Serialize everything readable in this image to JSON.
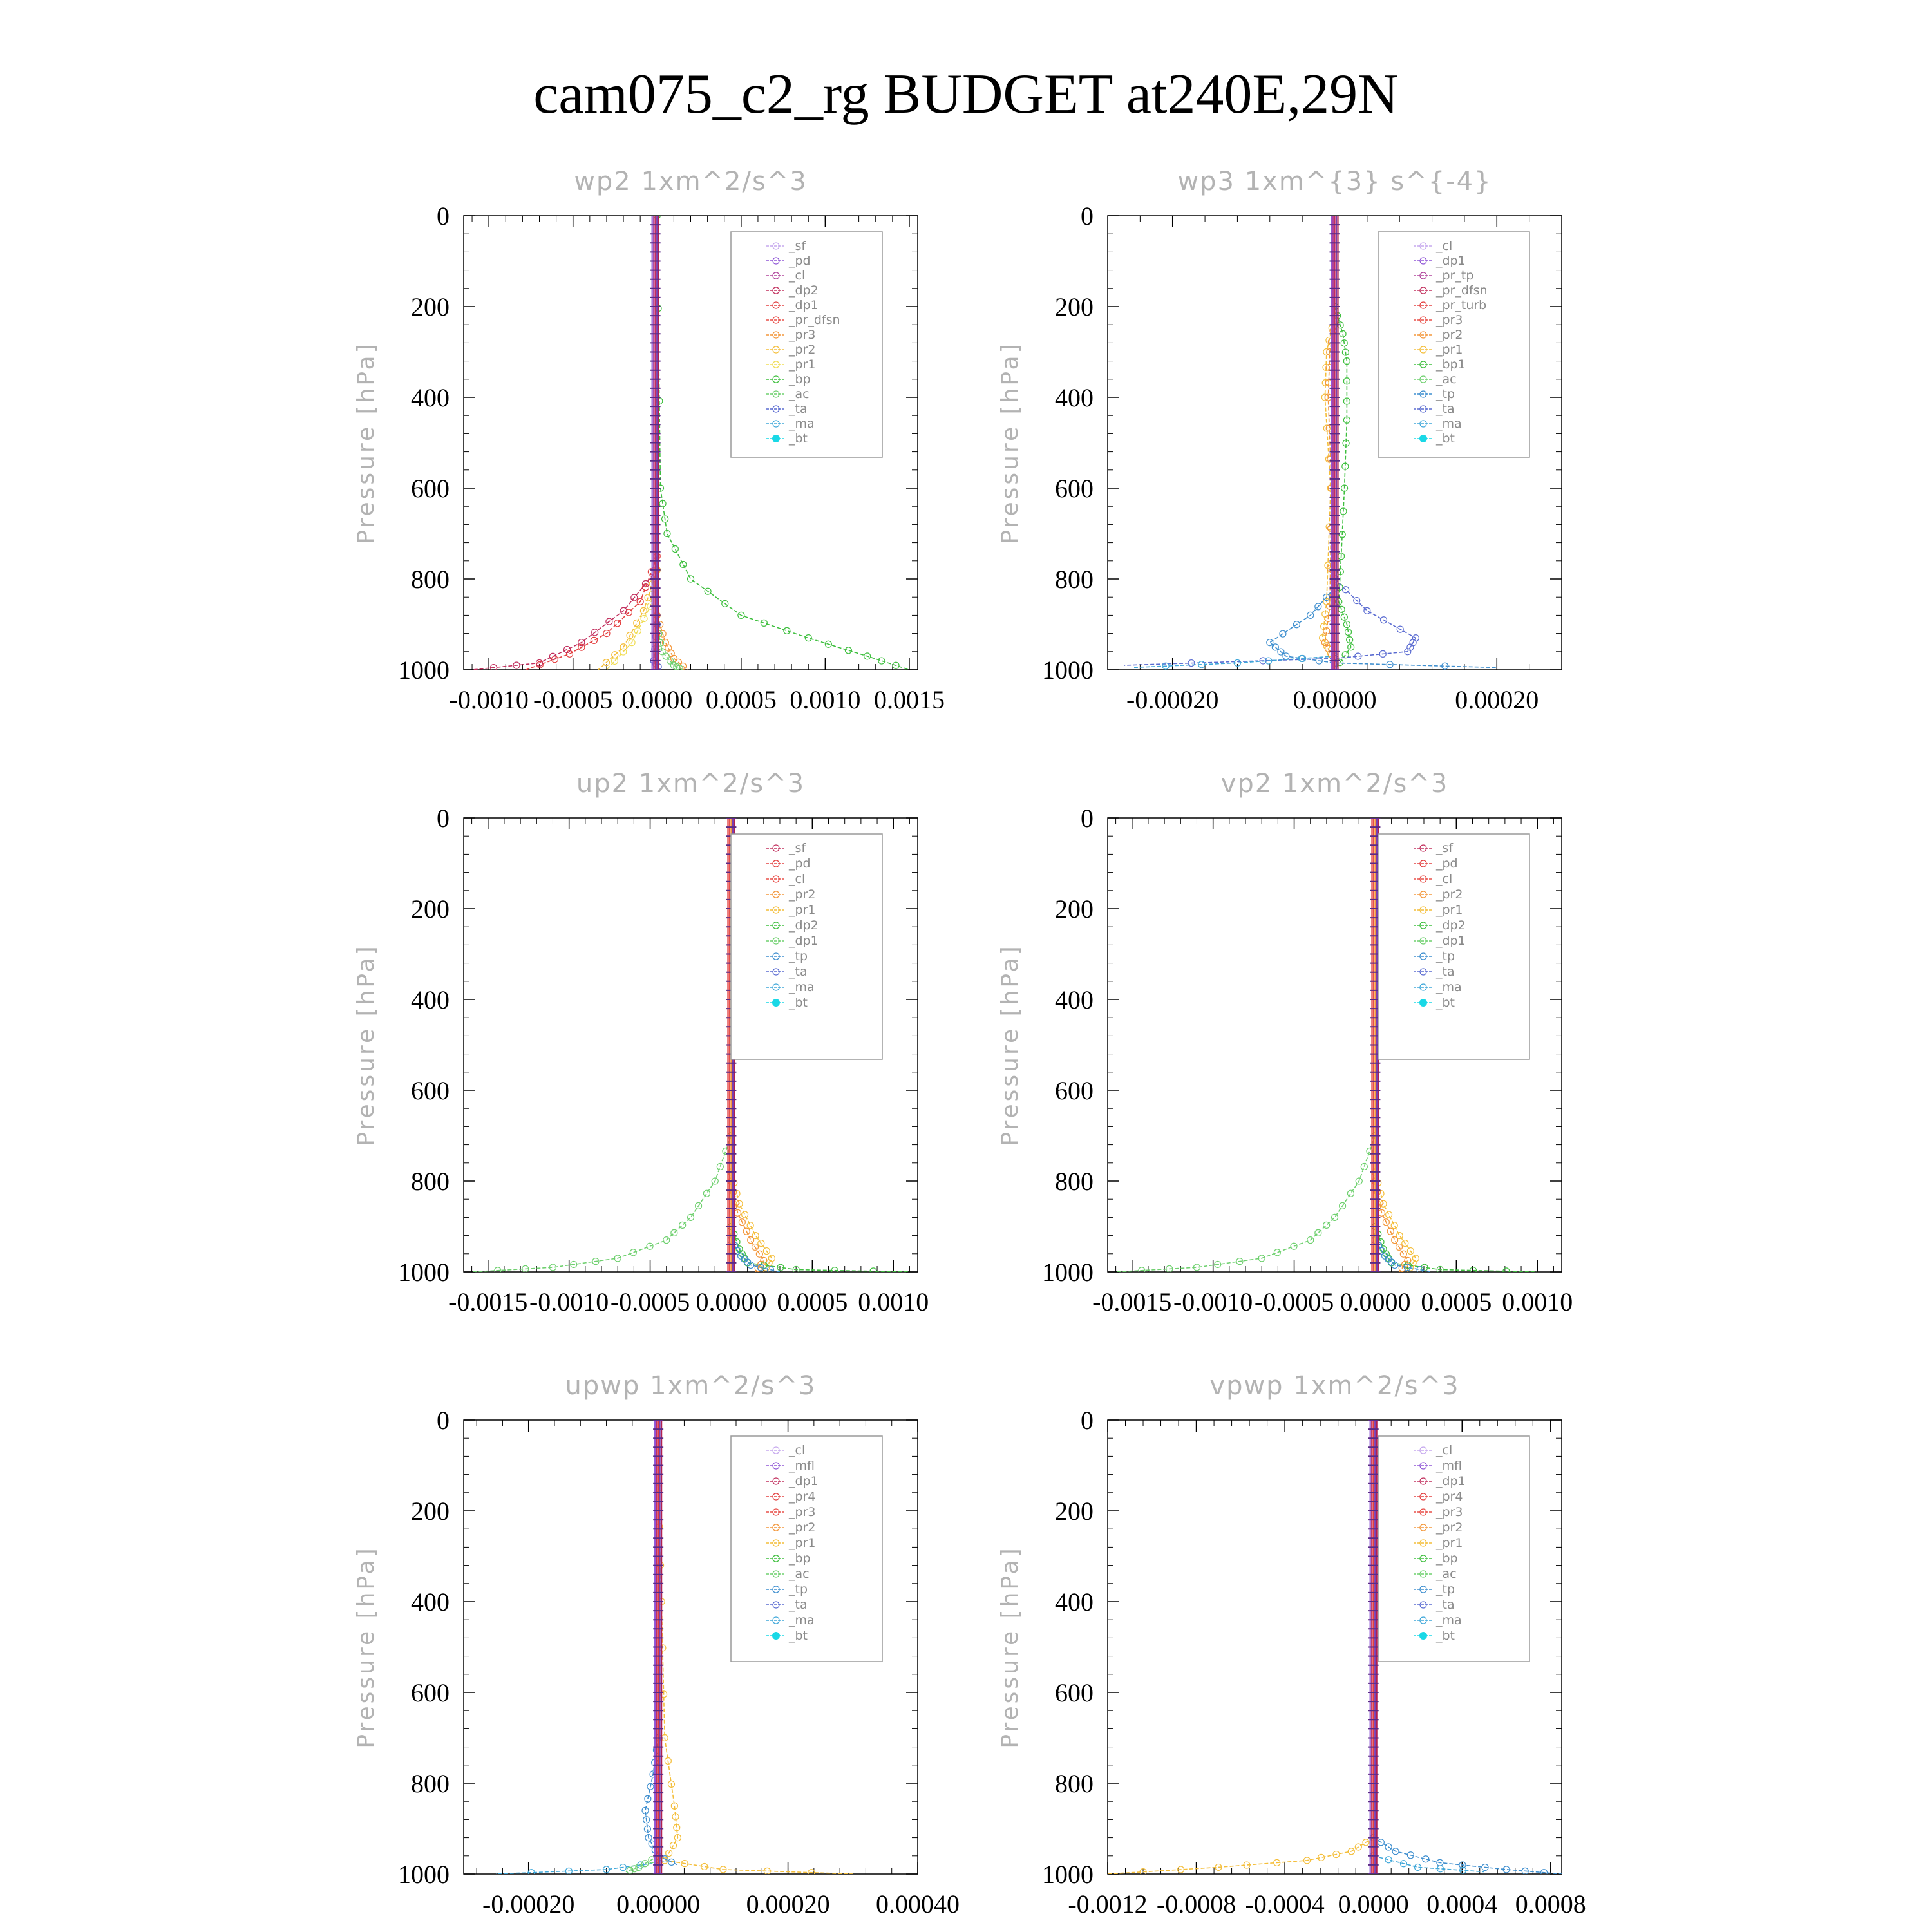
{
  "figure_title": "cam075_c2_rg  BUDGET at240E,29N",
  "chart_data": [
    {
      "type": "line",
      "title": "wp2   1xm^2/s^3",
      "ylabel": "Pressure [hPa]",
      "ylim": [
        1000,
        0
      ],
      "yticks": [
        "0",
        "200",
        "400",
        "600",
        "800",
        "1000"
      ],
      "xlim": [
        -0.00115,
        0.00155
      ],
      "xticks": [
        -0.001,
        -0.0005,
        0.0,
        0.0005,
        0.001,
        0.0015
      ],
      "xtick_labels": [
        "-0.0010",
        "-0.0005",
        "0.0000",
        "0.0005",
        "0.0010",
        "0.0015"
      ],
      "zero_x": -1e-05,
      "legend_position": "top-right",
      "legend": [
        "_sf",
        "_pd",
        "_cl",
        "_dp2",
        "_dp1",
        "_pr_dfsn",
        "_pr3",
        "_pr2",
        "_pr1",
        "_bp",
        "_ac",
        "_ta",
        "_ma",
        "_bt"
      ],
      "series_colors": [
        "#c6a8ee",
        "#8f56d6",
        "#b0449c",
        "#c2305e",
        "#e34040",
        "#e8504a",
        "#f3973b",
        "#f4be3a",
        "#f0dd55",
        "#3fbf3f",
        "#6fd06f",
        "#5a6bd1",
        "#3fa7d9",
        "#19d8e6"
      ],
      "series": [
        {
          "name": "_bp",
          "x": [
            0.0,
            2e-05,
            6e-05,
            0.0002,
            0.0005,
            0.0009,
            0.00125,
            0.0015
          ],
          "y": [
            0,
            600,
            700,
            800,
            880,
            930,
            970,
            1000
          ]
        },
        {
          "name": "_dp1",
          "x": [
            0.0,
            -0.0001,
            -0.0003,
            -0.00052,
            -0.00078
          ],
          "y": [
            750,
            850,
            920,
            965,
            1000
          ]
        },
        {
          "name": "_dp2",
          "x": [
            0.0,
            -0.0002,
            -0.00045,
            -0.0007,
            -0.0011
          ],
          "y": [
            780,
            870,
            940,
            985,
            1000
          ]
        },
        {
          "name": "_pr1",
          "x": [
            0.0,
            -4e-05,
            -0.00015,
            -0.0003
          ],
          "y": [
            780,
            860,
            940,
            1000
          ]
        },
        {
          "name": "_pr2",
          "x": [
            0.0,
            -8e-05,
            -0.0002,
            -0.00035
          ],
          "y": [
            780,
            870,
            950,
            1000
          ]
        },
        {
          "name": "_pr3",
          "x": [
            0.0,
            5e-05,
            0.0001,
            0.00018
          ],
          "y": [
            880,
            940,
            975,
            1000
          ]
        },
        {
          "name": "_ac",
          "x": [
            0.0,
            3e-05,
            0.0001,
            0.00015
          ],
          "y": [
            900,
            960,
            990,
            1000
          ]
        },
        {
          "name": "_ta",
          "x": [
            0.0,
            -2e-05,
            2e-05
          ],
          "y": [
            900,
            980,
            1000
          ]
        }
      ]
    },
    {
      "type": "line",
      "title": "wp3   1xm^{3} s^{-4}",
      "ylabel": "Pressure [hPa]",
      "ylim": [
        1000,
        0
      ],
      "yticks": [
        "0",
        "200",
        "400",
        "600",
        "800",
        "1000"
      ],
      "xlim": [
        -0.00028,
        0.00028
      ],
      "xticks": [
        -0.0002,
        0.0,
        0.0002
      ],
      "xtick_labels": [
        "-0.00020",
        "0.00000",
        "0.00020"
      ],
      "zero_x": 0.0,
      "legend_position": "top-right",
      "legend": [
        "_cl",
        "_dp1",
        "_pr_tp",
        "_pr_dfsn",
        "_pr_turb",
        "_pr3",
        "_pr2",
        "_pr1",
        "_bp1",
        "_ac",
        "_tp",
        "_ta",
        "_ma",
        "_bt"
      ],
      "series_colors": [
        "#c6a8ee",
        "#8f56d6",
        "#b0449c",
        "#c2305e",
        "#e34040",
        "#e8504a",
        "#f3973b",
        "#f4be3a",
        "#3fbf3f",
        "#6fd06f",
        "#3f8fcf",
        "#5a6bd1",
        "#3fa7d9",
        "#19d8e6"
      ],
      "series": [
        {
          "name": "_bp1",
          "x": [
            0.0,
            1e-05,
            1.5e-05,
            1.5e-05,
            1.2e-05,
            8e-06,
            5e-06,
            1.5e-05,
            2e-05,
            0.0
          ],
          "y": [
            200,
            260,
            320,
            450,
            600,
            750,
            850,
            900,
            950,
            1000
          ]
        },
        {
          "name": "_pr1",
          "x": [
            0.0,
            -1e-05,
            -1.2e-05,
            -5e-06,
            -1e-05,
            -1.5e-05,
            0.0
          ],
          "y": [
            220,
            300,
            400,
            600,
            850,
            930,
            980
          ]
        },
        {
          "name": "_pr2",
          "x": [
            0.0,
            -6e-06,
            -8e-06,
            -4e-06,
            -6e-06,
            -1.2e-05,
            0.0
          ],
          "y": [
            230,
            300,
            400,
            600,
            860,
            940,
            980
          ]
        },
        {
          "name": "_tp",
          "x": [
            0.0,
            -3e-05,
            -8e-05,
            -6e-05,
            0.0,
            0.0002
          ],
          "y": [
            820,
            880,
            940,
            970,
            985,
            995
          ]
        },
        {
          "name": "_ta",
          "x": [
            0.0,
            4e-05,
            0.0001,
            9e-05,
            0.0,
            -0.00026
          ],
          "y": [
            800,
            870,
            930,
            960,
            975,
            990
          ]
        },
        {
          "name": "_ma",
          "x": [
            0.0,
            -0.00012,
            -0.00025
          ],
          "y": [
            970,
            985,
            995
          ]
        }
      ]
    },
    {
      "type": "line",
      "title": "up2   1xm^2/s^3",
      "ylabel": "Pressure [hPa]",
      "ylim": [
        1000,
        0
      ],
      "yticks": [
        "0",
        "200",
        "400",
        "600",
        "800",
        "1000"
      ],
      "xlim": [
        -0.00165,
        0.00115
      ],
      "xticks": [
        -0.0015,
        -0.001,
        -0.0005,
        0.0,
        0.0005,
        0.001
      ],
      "xtick_labels": [
        "-0.0015",
        "-0.0010",
        "-0.0005",
        "0.0000",
        "0.0005",
        "0.0010"
      ],
      "zero_x": 0.0,
      "legend_position": "top-right",
      "legend": [
        "_sf",
        "_pd",
        "_cl",
        "_pr2",
        "_pr1",
        "_dp2",
        "_dp1",
        "_tp",
        "_ta",
        "_ma",
        "_bt"
      ],
      "series_colors": [
        "#c2305e",
        "#e34040",
        "#e8504a",
        "#f3973b",
        "#f4be3a",
        "#3fbf3f",
        "#6fd06f",
        "#3f8fcf",
        "#5a6bd1",
        "#3fa7d9",
        "#19d8e6"
      ],
      "series": [
        {
          "name": "_dp1",
          "x": [
            0.0,
            -0.0001,
            -0.00025,
            -0.0004,
            -0.0007,
            -0.0011,
            -0.0016
          ],
          "y": [
            700,
            800,
            880,
            930,
            970,
            990,
            1000
          ]
        },
        {
          "name": "_pr1",
          "x": [
            0.0,
            5e-05,
            0.00015,
            0.00025,
            0.0002
          ],
          "y": [
            780,
            850,
            920,
            970,
            1000
          ]
        },
        {
          "name": "_pr2",
          "x": [
            0.0,
            4e-05,
            0.00012,
            0.0002,
            0.00015
          ],
          "y": [
            800,
            870,
            930,
            975,
            1000
          ]
        },
        {
          "name": "_dp2",
          "x": [
            0.0,
            5e-05,
            0.0001,
            0.0004,
            0.0011
          ],
          "y": [
            900,
            950,
            980,
            995,
            1000
          ]
        },
        {
          "name": "_tp",
          "x": [
            0.0,
            6e-05,
            0.00012,
            0.0003
          ],
          "y": [
            930,
            965,
            985,
            1000
          ]
        }
      ]
    },
    {
      "type": "line",
      "title": "vp2   1xm^2/s^3",
      "ylabel": "Pressure [hPa]",
      "ylim": [
        1000,
        0
      ],
      "yticks": [
        "0",
        "200",
        "400",
        "600",
        "800",
        "1000"
      ],
      "xlim": [
        -0.00165,
        0.00115
      ],
      "xticks": [
        -0.0015,
        -0.001,
        -0.0005,
        0.0,
        0.0005,
        0.001
      ],
      "xtick_labels": [
        "-0.0015",
        "-0.0010",
        "-0.0005",
        "0.0000",
        "0.0005",
        "0.0010"
      ],
      "zero_x": 0.0,
      "legend_position": "top-right",
      "legend": [
        "_sf",
        "_pd",
        "_cl",
        "_pr2",
        "_pr1",
        "_dp2",
        "_dp1",
        "_tp",
        "_ta",
        "_ma",
        "_bt"
      ],
      "series_colors": [
        "#c2305e",
        "#e34040",
        "#e8504a",
        "#f3973b",
        "#f4be3a",
        "#3fbf3f",
        "#6fd06f",
        "#3f8fcf",
        "#5a6bd1",
        "#3fa7d9",
        "#19d8e6"
      ],
      "series": [
        {
          "name": "_dp1",
          "x": [
            0.0,
            -0.0001,
            -0.00025,
            -0.0004,
            -0.0007,
            -0.0011,
            -0.0016
          ],
          "y": [
            700,
            800,
            880,
            930,
            970,
            990,
            1000
          ]
        },
        {
          "name": "_pr1",
          "x": [
            0.0,
            5e-05,
            0.00015,
            0.00025,
            0.0002
          ],
          "y": [
            780,
            850,
            920,
            970,
            1000
          ]
        },
        {
          "name": "_pr2",
          "x": [
            0.0,
            4e-05,
            0.00012,
            0.0002,
            0.00015
          ],
          "y": [
            800,
            870,
            930,
            975,
            1000
          ]
        },
        {
          "name": "_dp2",
          "x": [
            0.0,
            5e-05,
            0.0001,
            0.0004,
            0.001
          ],
          "y": [
            900,
            950,
            980,
            995,
            1000
          ]
        },
        {
          "name": "_tp",
          "x": [
            0.0,
            6e-05,
            0.00012,
            0.00035
          ],
          "y": [
            930,
            965,
            985,
            1000
          ]
        }
      ]
    },
    {
      "type": "line",
      "title": "upwp   1xm^2/s^3",
      "ylabel": "Pressure [hPa]",
      "ylim": [
        1000,
        0
      ],
      "yticks": [
        "0",
        "200",
        "400",
        "600",
        "800",
        "1000"
      ],
      "xlim": [
        -0.0003,
        0.0004
      ],
      "xticks": [
        -0.0002,
        0.0,
        0.0002,
        0.0004
      ],
      "xtick_labels": [
        "-0.00020",
        "0.00000",
        "0.00020",
        "0.00040"
      ],
      "zero_x": 0.0,
      "legend_position": "top-right",
      "legend": [
        "_cl",
        "_mfl",
        "_dp1",
        "_pr4",
        "_pr3",
        "_pr2",
        "_pr1",
        "_bp",
        "_ac",
        "_tp",
        "_ta",
        "_ma",
        "_bt"
      ],
      "series_colors": [
        "#c6a8ee",
        "#8f56d6",
        "#c2305e",
        "#e34040",
        "#e8504a",
        "#f3973b",
        "#f4be3a",
        "#3fbf3f",
        "#6fd06f",
        "#3f8fcf",
        "#5a6bd1",
        "#3fa7d9",
        "#19d8e6"
      ],
      "series": [
        {
          "name": "_pr1",
          "x": [
            0.0,
            5e-06,
            1e-05,
            2.5e-05,
            3e-05,
            1e-05,
            0.0001,
            0.0003
          ],
          "y": [
            150,
            400,
            700,
            850,
            920,
            970,
            990,
            1000
          ]
        },
        {
          "name": "_tp",
          "x": [
            0.0,
            -8e-06,
            -2e-05,
            -1.5e-05,
            0.0,
            3e-05
          ],
          "y": [
            700,
            780,
            860,
            920,
            960,
            980
          ]
        },
        {
          "name": "_ma",
          "x": [
            0.0,
            -8e-05,
            -0.00025
          ],
          "y": [
            975,
            990,
            1000
          ]
        },
        {
          "name": "_ac",
          "x": [
            0.0,
            -3e-05,
            -5e-05
          ],
          "y": [
            960,
            985,
            995
          ]
        }
      ]
    },
    {
      "type": "line",
      "title": "vpwp   1xm^2/s^3",
      "ylabel": "Pressure [hPa]",
      "ylim": [
        1000,
        0
      ],
      "yticks": [
        "0",
        "200",
        "400",
        "600",
        "800",
        "1000"
      ],
      "xlim": [
        -0.0012,
        0.00085
      ],
      "xticks": [
        -0.0012,
        -0.0008,
        -0.0004,
        0.0,
        0.0004,
        0.0008
      ],
      "xtick_labels": [
        "-0.0012",
        "-0.0008",
        "-0.0004",
        "0.0000",
        "0.0004",
        "0.0008"
      ],
      "zero_x": 0.0,
      "legend_position": "top-right",
      "legend": [
        "_cl",
        "_mfl",
        "_dp1",
        "_pr4",
        "_pr3",
        "_pr2",
        "_pr1",
        "_bp",
        "_ac",
        "_tp",
        "_ta",
        "_ma",
        "_bt"
      ],
      "series_colors": [
        "#c6a8ee",
        "#8f56d6",
        "#c2305e",
        "#e34040",
        "#e8504a",
        "#f3973b",
        "#f4be3a",
        "#3fbf3f",
        "#6fd06f",
        "#3f8fcf",
        "#5a6bd1",
        "#3fa7d9",
        "#19d8e6"
      ],
      "series": [
        {
          "name": "_pr1",
          "x": [
            0.0,
            -0.0001,
            -0.0003,
            -0.0007,
            -0.0012
          ],
          "y": [
            920,
            950,
            970,
            985,
            1000
          ]
        },
        {
          "name": "_tp",
          "x": [
            0.0,
            0.0001,
            0.0003,
            0.0006,
            0.00085
          ],
          "y": [
            920,
            950,
            975,
            990,
            1000
          ]
        },
        {
          "name": "_ma",
          "x": [
            0.0,
            0.0002,
            0.0005
          ],
          "y": [
            960,
            985,
            995
          ]
        }
      ]
    }
  ]
}
